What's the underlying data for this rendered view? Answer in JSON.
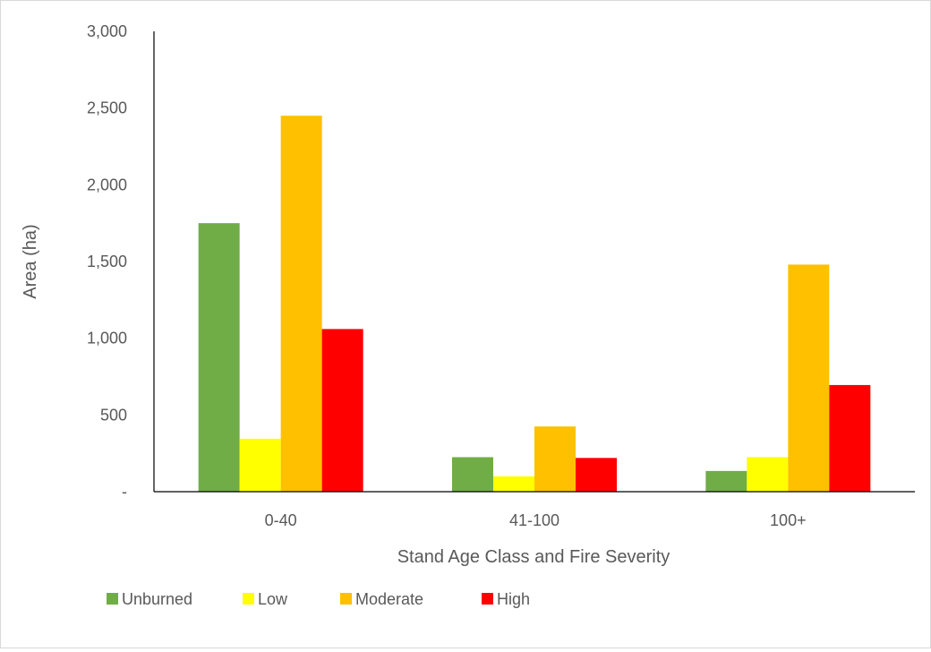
{
  "chart_data": {
    "type": "bar",
    "title": "",
    "xlabel": "Stand Age Class and Fire Severity",
    "ylabel": "Area (ha)",
    "categories": [
      "0-40",
      "41-100",
      "100+"
    ],
    "series": [
      {
        "name": "Unburned",
        "color": "#70AD47",
        "values": [
          1750,
          225,
          135
        ]
      },
      {
        "name": "Low",
        "color": "#FFFF00",
        "values": [
          345,
          100,
          225
        ]
      },
      {
        "name": "Moderate",
        "color": "#FFC000",
        "values": [
          2450,
          425,
          1480
        ]
      },
      {
        "name": "High",
        "color": "#FF0000",
        "values": [
          1060,
          220,
          695
        ]
      }
    ],
    "ylim": [
      0,
      3000
    ],
    "yticks": [
      0,
      500,
      1000,
      1500,
      2000,
      2500,
      3000
    ],
    "ytick_labels": [
      "-",
      "500",
      "1,000",
      "1,500",
      "2,000",
      "2,500",
      "3,000"
    ],
    "grid": false,
    "legend": "bottom-left"
  }
}
